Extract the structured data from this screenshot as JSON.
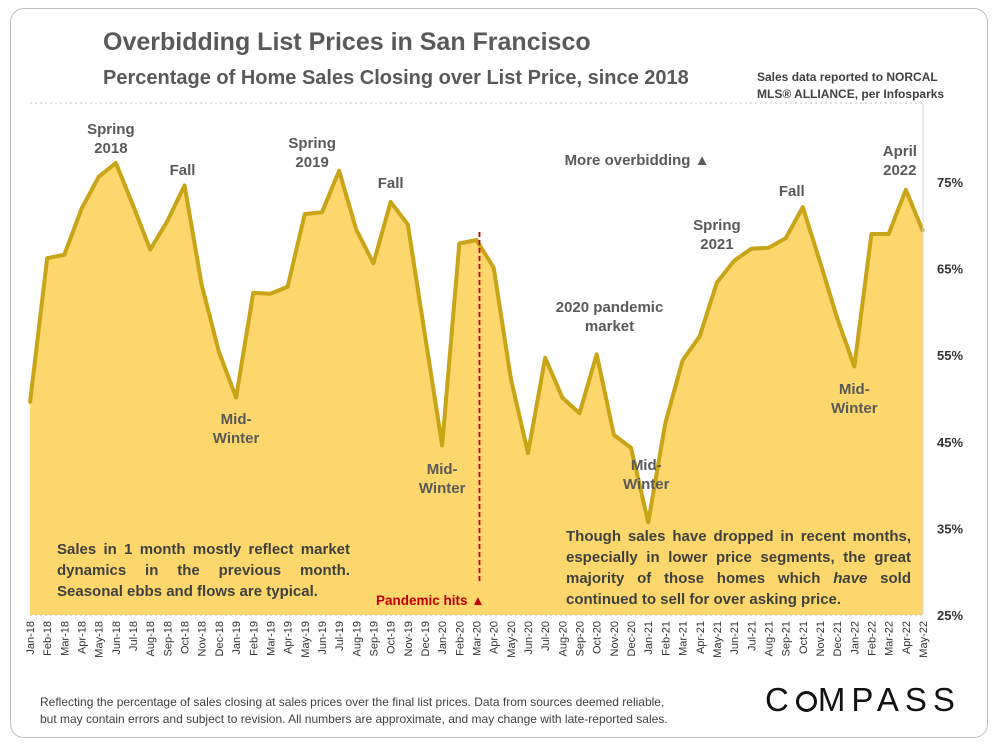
{
  "title": "Overbidding List Prices in San Francisco",
  "subtitle": "Percentage of Home Sales Closing over List Price, since 2018",
  "source_note": [
    "Sales data reported to NORCAL",
    "MLS® ALLIANCE, per Infosparks"
  ],
  "footer_note": [
    "Reflecting the percentage of sales closing at sales prices over the final list prices. Data from sources deemed reliable,",
    "but may contain errors and subject to revision. All numbers are approximate, and may change with late-reported sales."
  ],
  "brand": {
    "before": "C",
    "after": "MPASS"
  },
  "notes": {
    "left": "Sales in 1 month mostly reflect market dynamics in the previous month. Seasonal ebbs and flows are typical.",
    "right_before": "Though sales have dropped in recent months, especially in lower price segments, the great majority of those homes which ",
    "right_emph": "have",
    "right_after": " sold continued to sell for over asking price."
  },
  "pandemic_label": "Pandemic hits ▲",
  "chart_data": {
    "type": "area",
    "title": "Overbidding List Prices in San Francisco",
    "ylabel": "",
    "xlabel": "",
    "ylim": [
      25,
      75
    ],
    "yticks": [
      25,
      35,
      45,
      55,
      65,
      75
    ],
    "ytick_labels": [
      "25%",
      "35%",
      "45%",
      "55%",
      "65%",
      "75%"
    ],
    "grid": false,
    "categories": [
      "Jan-18",
      "Feb-18",
      "Mar-18",
      "Apr-18",
      "May-18",
      "Jun-18",
      "Jul-18",
      "Aug-18",
      "Sep-18",
      "Oct-18",
      "Nov-18",
      "Dec-18",
      "Jan-19",
      "Feb-19",
      "Mar-19",
      "Apr-19",
      "May-19",
      "Jun-19",
      "Jul-19",
      "Aug-19",
      "Sep-19",
      "Oct-19",
      "Nov-19",
      "Dec-19",
      "Jan-20",
      "Feb-20",
      "Mar-20",
      "Apr-20",
      "May-20",
      "Jun-20",
      "Jul-20",
      "Aug-20",
      "Sep-20",
      "Oct-20",
      "Nov-20",
      "Dec-20",
      "Jan-21",
      "Feb-21",
      "Mar-21",
      "Apr-21",
      "May-21",
      "Jun-21",
      "Jul-21",
      "Aug-21",
      "Sep-21",
      "Oct-21",
      "Nov-21",
      "Dec-21",
      "Jan-22",
      "Feb-22",
      "Mar-22",
      "Apr-22",
      "May-22"
    ],
    "series": [
      {
        "name": "Percentage of Home Sales Closing over List Price",
        "values": [
          49.5,
          66.2,
          66.6,
          71.9,
          75.6,
          77.2,
          72.3,
          67.2,
          70.5,
          74.6,
          63.1,
          55.4,
          50.1,
          62.2,
          62.1,
          62.9,
          71.3,
          71.5,
          76.3,
          69.5,
          65.6,
          72.7,
          70.1,
          57.3,
          44.6,
          67.9,
          68.3,
          65.1,
          52.3,
          43.7,
          54.7,
          50.1,
          48.3,
          55.1,
          45.8,
          44.3,
          35.7,
          47.2,
          54.4,
          57.2,
          63.4,
          65.9,
          67.3,
          67.4,
          68.5,
          72.1,
          65.8,
          59.3,
          53.7,
          69.0,
          69.0,
          74.1,
          69.3
        ]
      }
    ],
    "annotations": [
      {
        "label": [
          "Spring",
          "2018"
        ],
        "at": "Jun-18"
      },
      {
        "label": [
          "Fall"
        ],
        "at": "Oct-18"
      },
      {
        "label": [
          "Mid-",
          "Winter"
        ],
        "at": "Jan-19"
      },
      {
        "label": [
          "Spring",
          "2019"
        ],
        "at": "Jul-19"
      },
      {
        "label": [
          "Fall"
        ],
        "at": "Oct-19"
      },
      {
        "label": [
          "Mid-",
          "Winter"
        ],
        "at": "Jan-20"
      },
      {
        "label": [
          "2020 pandemic",
          "market"
        ],
        "at": "Sep-20"
      },
      {
        "label": [
          "Mid-",
          "Winter"
        ],
        "at": "Jan-21"
      },
      {
        "label": [
          "Spring",
          "2021"
        ],
        "at": "May-21"
      },
      {
        "label": [
          "Fall"
        ],
        "at": "Oct-21"
      },
      {
        "label": [
          "Mid-",
          "Winter"
        ],
        "at": "Jan-22"
      },
      {
        "label": [
          "April",
          "2022"
        ],
        "at": "Apr-22"
      }
    ],
    "more_overbidding_label": "More overbidding ▲",
    "pandemic_marker": {
      "at": "Mar-20",
      "label": "Pandemic hits ▲"
    },
    "colors": {
      "fill": "#fdd76b",
      "line": "#c9a417",
      "pandemic_line": "#c00000"
    }
  }
}
